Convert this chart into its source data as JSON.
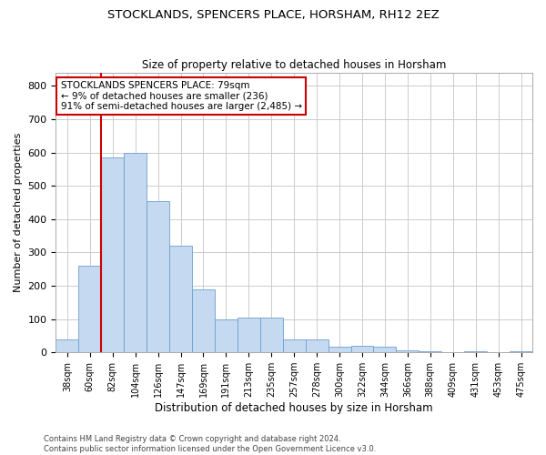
{
  "title1": "STOCKLANDS, SPENCERS PLACE, HORSHAM, RH12 2EZ",
  "title2": "Size of property relative to detached houses in Horsham",
  "xlabel": "Distribution of detached houses by size in Horsham",
  "ylabel": "Number of detached properties",
  "footer1": "Contains HM Land Registry data © Crown copyright and database right 2024.",
  "footer2": "Contains public sector information licensed under the Open Government Licence v3.0.",
  "bar_labels": [
    "38sqm",
    "60sqm",
    "82sqm",
    "104sqm",
    "126sqm",
    "147sqm",
    "169sqm",
    "191sqm",
    "213sqm",
    "235sqm",
    "257sqm",
    "278sqm",
    "300sqm",
    "322sqm",
    "344sqm",
    "366sqm",
    "388sqm",
    "409sqm",
    "431sqm",
    "453sqm",
    "475sqm"
  ],
  "bar_values": [
    38,
    260,
    585,
    600,
    455,
    320,
    190,
    100,
    105,
    105,
    38,
    40,
    18,
    20,
    18,
    5,
    2,
    0,
    2,
    0,
    2
  ],
  "bar_color": "#c5d9f0",
  "bar_edge_color": "#6b9fd4",
  "annotation_text1": "STOCKLANDS SPENCERS PLACE: 79sqm",
  "annotation_text2": "← 9% of detached houses are smaller (236)",
  "annotation_text3": "91% of semi-detached houses are larger (2,485) →",
  "annotation_box_color": "#ffffff",
  "annotation_box_edge_color": "#cc0000",
  "red_line_color": "#cc0000",
  "red_line_x": 1.5,
  "ylim": [
    0,
    840
  ],
  "yticks": [
    0,
    100,
    200,
    300,
    400,
    500,
    600,
    700,
    800
  ],
  "background_color": "#ffffff",
  "grid_color": "#cccccc",
  "figwidth": 6.0,
  "figheight": 5.0,
  "dpi": 100
}
